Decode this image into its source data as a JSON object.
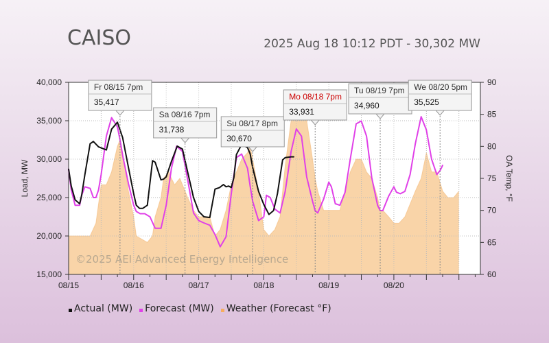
{
  "header": {
    "title": "CAISO",
    "subtitle": "2025 Aug 18 10:12 PDT - 30,302 MW"
  },
  "watermark": {
    "text": "©2025 AEI Advanced Energy Intelligence"
  },
  "colors": {
    "actual": "#111111",
    "forecast": "#e040e8",
    "weather": "#f9d4a8",
    "weather_stroke": "#f3b978",
    "highlight_label": "#cc0000"
  },
  "chart_data": {
    "type": "line",
    "x_unit": "day",
    "xlim": [
      0,
      6.33
    ],
    "x_tick_labels": [
      {
        "x": 0,
        "label": "08/15"
      },
      {
        "x": 1,
        "label": "08/16"
      },
      {
        "x": 2,
        "label": "08/17"
      },
      {
        "x": 3,
        "label": "08/18"
      },
      {
        "x": 4,
        "label": "08/19"
      },
      {
        "x": 5,
        "label": "08/20"
      }
    ],
    "ylabel": "Load, MW",
    "ylim": [
      15000,
      40000
    ],
    "y_ticks": [
      15000,
      20000,
      25000,
      30000,
      35000,
      40000
    ],
    "y_tick_labels": [
      "15,000",
      "20,000",
      "25,000",
      "30,000",
      "35,000",
      "40,000"
    ],
    "y2label": "OA Temp, °F",
    "y2lim": [
      60,
      90
    ],
    "y2_ticks": [
      60,
      65,
      70,
      75,
      80,
      85,
      90
    ],
    "grid": true,
    "series": [
      {
        "name": "Actual (MW)",
        "x": [
          0,
          0.04,
          0.1,
          0.17,
          0.2,
          0.25,
          0.33,
          0.38,
          0.46,
          0.58,
          0.66,
          0.75,
          0.83,
          0.92,
          1.0,
          1.04,
          1.09,
          1.14,
          1.21,
          1.29,
          1.33,
          1.42,
          1.46,
          1.5,
          1.58,
          1.67,
          1.75,
          1.83,
          1.92,
          2.0,
          2.08,
          2.17,
          2.25,
          2.32,
          2.38,
          2.42,
          2.46,
          2.5,
          2.54,
          2.58,
          2.66,
          2.75,
          2.79,
          2.83,
          2.92,
          3.0,
          3.08,
          3.15,
          3.21,
          3.29,
          3.33,
          3.42,
          3.46
        ],
        "y": [
          28700,
          26500,
          24700,
          24200,
          25300,
          28000,
          32000,
          32300,
          31600,
          31200,
          33900,
          34800,
          32800,
          28900,
          25500,
          24000,
          23600,
          23600,
          24000,
          29800,
          29600,
          27300,
          27400,
          27700,
          29700,
          31700,
          31300,
          28300,
          25000,
          23200,
          22500,
          22400,
          26100,
          26300,
          26700,
          26400,
          26500,
          26300,
          27600,
          30600,
          31900,
          31500,
          30700,
          28900,
          25800,
          24100,
          22800,
          23300,
          25500,
          29900,
          30200,
          30300,
          30302
        ]
      },
      {
        "name": "Forecast (MW)",
        "x": [
          0,
          0.04,
          0.1,
          0.17,
          0.2,
          0.25,
          0.33,
          0.38,
          0.42,
          0.46,
          0.5,
          0.58,
          0.66,
          0.75,
          0.79,
          0.83,
          0.92,
          1.0,
          1.04,
          1.1,
          1.17,
          1.25,
          1.33,
          1.42,
          1.5,
          1.58,
          1.66,
          1.75,
          1.83,
          1.92,
          2.0,
          2.08,
          2.17,
          2.25,
          2.33,
          2.42,
          2.5,
          2.58,
          2.66,
          2.75,
          2.79,
          2.83,
          2.92,
          3.0,
          3.04,
          3.1,
          3.17,
          3.25,
          3.33,
          3.42,
          3.5,
          3.58,
          3.66,
          3.75,
          3.79,
          3.83,
          3.92,
          4.0,
          4.04,
          4.1,
          4.17,
          4.25,
          4.33,
          4.42,
          4.5,
          4.58,
          4.66,
          4.75,
          4.79,
          4.83,
          4.92,
          5.0,
          5.04,
          5.1,
          5.17,
          5.25,
          5.33,
          5.42,
          5.5,
          5.58,
          5.66,
          5.71,
          5.75
        ],
        "y": [
          28700,
          26000,
          24000,
          24000,
          25300,
          26400,
          26200,
          25000,
          25000,
          26000,
          28000,
          33000,
          35400,
          34200,
          32500,
          30500,
          26800,
          24000,
          23200,
          22900,
          22900,
          22500,
          21000,
          21000,
          24000,
          28800,
          31700,
          31000,
          27300,
          23000,
          22000,
          21700,
          21400,
          20200,
          18600,
          19900,
          25500,
          30200,
          30670,
          28800,
          26500,
          24500,
          22000,
          22500,
          25300,
          25000,
          23500,
          23000,
          25800,
          31000,
          33931,
          33000,
          27700,
          24500,
          23300,
          23000,
          24800,
          27000,
          26400,
          24200,
          24000,
          25700,
          30000,
          34600,
          34960,
          33000,
          27600,
          24000,
          23300,
          23300,
          25200,
          26400,
          25700,
          25500,
          25800,
          28000,
          32000,
          35525,
          33800,
          30000,
          28000,
          28500,
          29200
        ]
      },
      {
        "name": "Weather (Forecast °F)",
        "axis": "y2",
        "x": [
          0,
          0.25,
          0.33,
          0.42,
          0.5,
          0.58,
          0.66,
          0.75,
          0.79,
          0.83,
          0.92,
          1.0,
          1.04,
          1.21,
          1.29,
          1.33,
          1.42,
          1.46,
          1.54,
          1.58,
          1.63,
          1.71,
          1.75,
          1.83,
          1.92,
          2.0,
          2.17,
          2.25,
          2.33,
          2.42,
          2.5,
          2.58,
          2.66,
          2.75,
          2.79,
          2.83,
          2.92,
          3.0,
          3.08,
          3.17,
          3.25,
          3.33,
          3.42,
          3.5,
          3.58,
          3.66,
          3.75,
          3.79,
          3.83,
          3.92,
          4.0,
          4.08,
          4.17,
          4.25,
          4.33,
          4.42,
          4.5,
          4.58,
          4.66,
          4.75,
          4.79,
          4.83,
          4.92,
          5.0,
          5.08,
          5.17,
          5.25,
          5.33,
          5.42,
          5.5,
          5.58,
          5.66,
          5.75,
          5.83,
          5.92,
          6.0
        ],
        "y": [
          66,
          66,
          66,
          68,
          74,
          74,
          76,
          80,
          81,
          79,
          73,
          69,
          66,
          65,
          66,
          69,
          72,
          75,
          76,
          75,
          74,
          75,
          74,
          72,
          70,
          69,
          69,
          66,
          67,
          70,
          74,
          76,
          78,
          79,
          80,
          78,
          73,
          67,
          66,
          67,
          69,
          77,
          84,
          85,
          85,
          84,
          78,
          75,
          73,
          70,
          70,
          70,
          70,
          73,
          76,
          78,
          78,
          76,
          75,
          72,
          70,
          70,
          69,
          68,
          68,
          69,
          71,
          73,
          75,
          79,
          76,
          76,
          73,
          72,
          72,
          73
        ]
      }
    ],
    "annotations": [
      {
        "x": 0.79,
        "label": "Fr 08/15 7pm",
        "value": "35,417",
        "highlight": false
      },
      {
        "x": 1.79,
        "label": "Sa 08/16 7pm",
        "value": "31,738",
        "highlight": false
      },
      {
        "x": 2.83,
        "label": "Su 08/17 8pm",
        "value": "30,670",
        "highlight": false
      },
      {
        "x": 3.79,
        "label": "Mo 08/18 7pm",
        "value": "33,931",
        "highlight": true
      },
      {
        "x": 4.79,
        "label": "Tu 08/19 7pm",
        "value": "34,960",
        "highlight": false
      },
      {
        "x": 5.71,
        "label": "We 08/20 5pm",
        "value": "35,525",
        "highlight": false
      }
    ]
  },
  "legend": {
    "items": [
      {
        "label": "Actual (MW)",
        "color": "#111111"
      },
      {
        "label": "Forecast (MW)",
        "color": "#e040e8"
      },
      {
        "label": "Weather (Forecast °F)",
        "color": "#f6ad5e"
      }
    ]
  }
}
